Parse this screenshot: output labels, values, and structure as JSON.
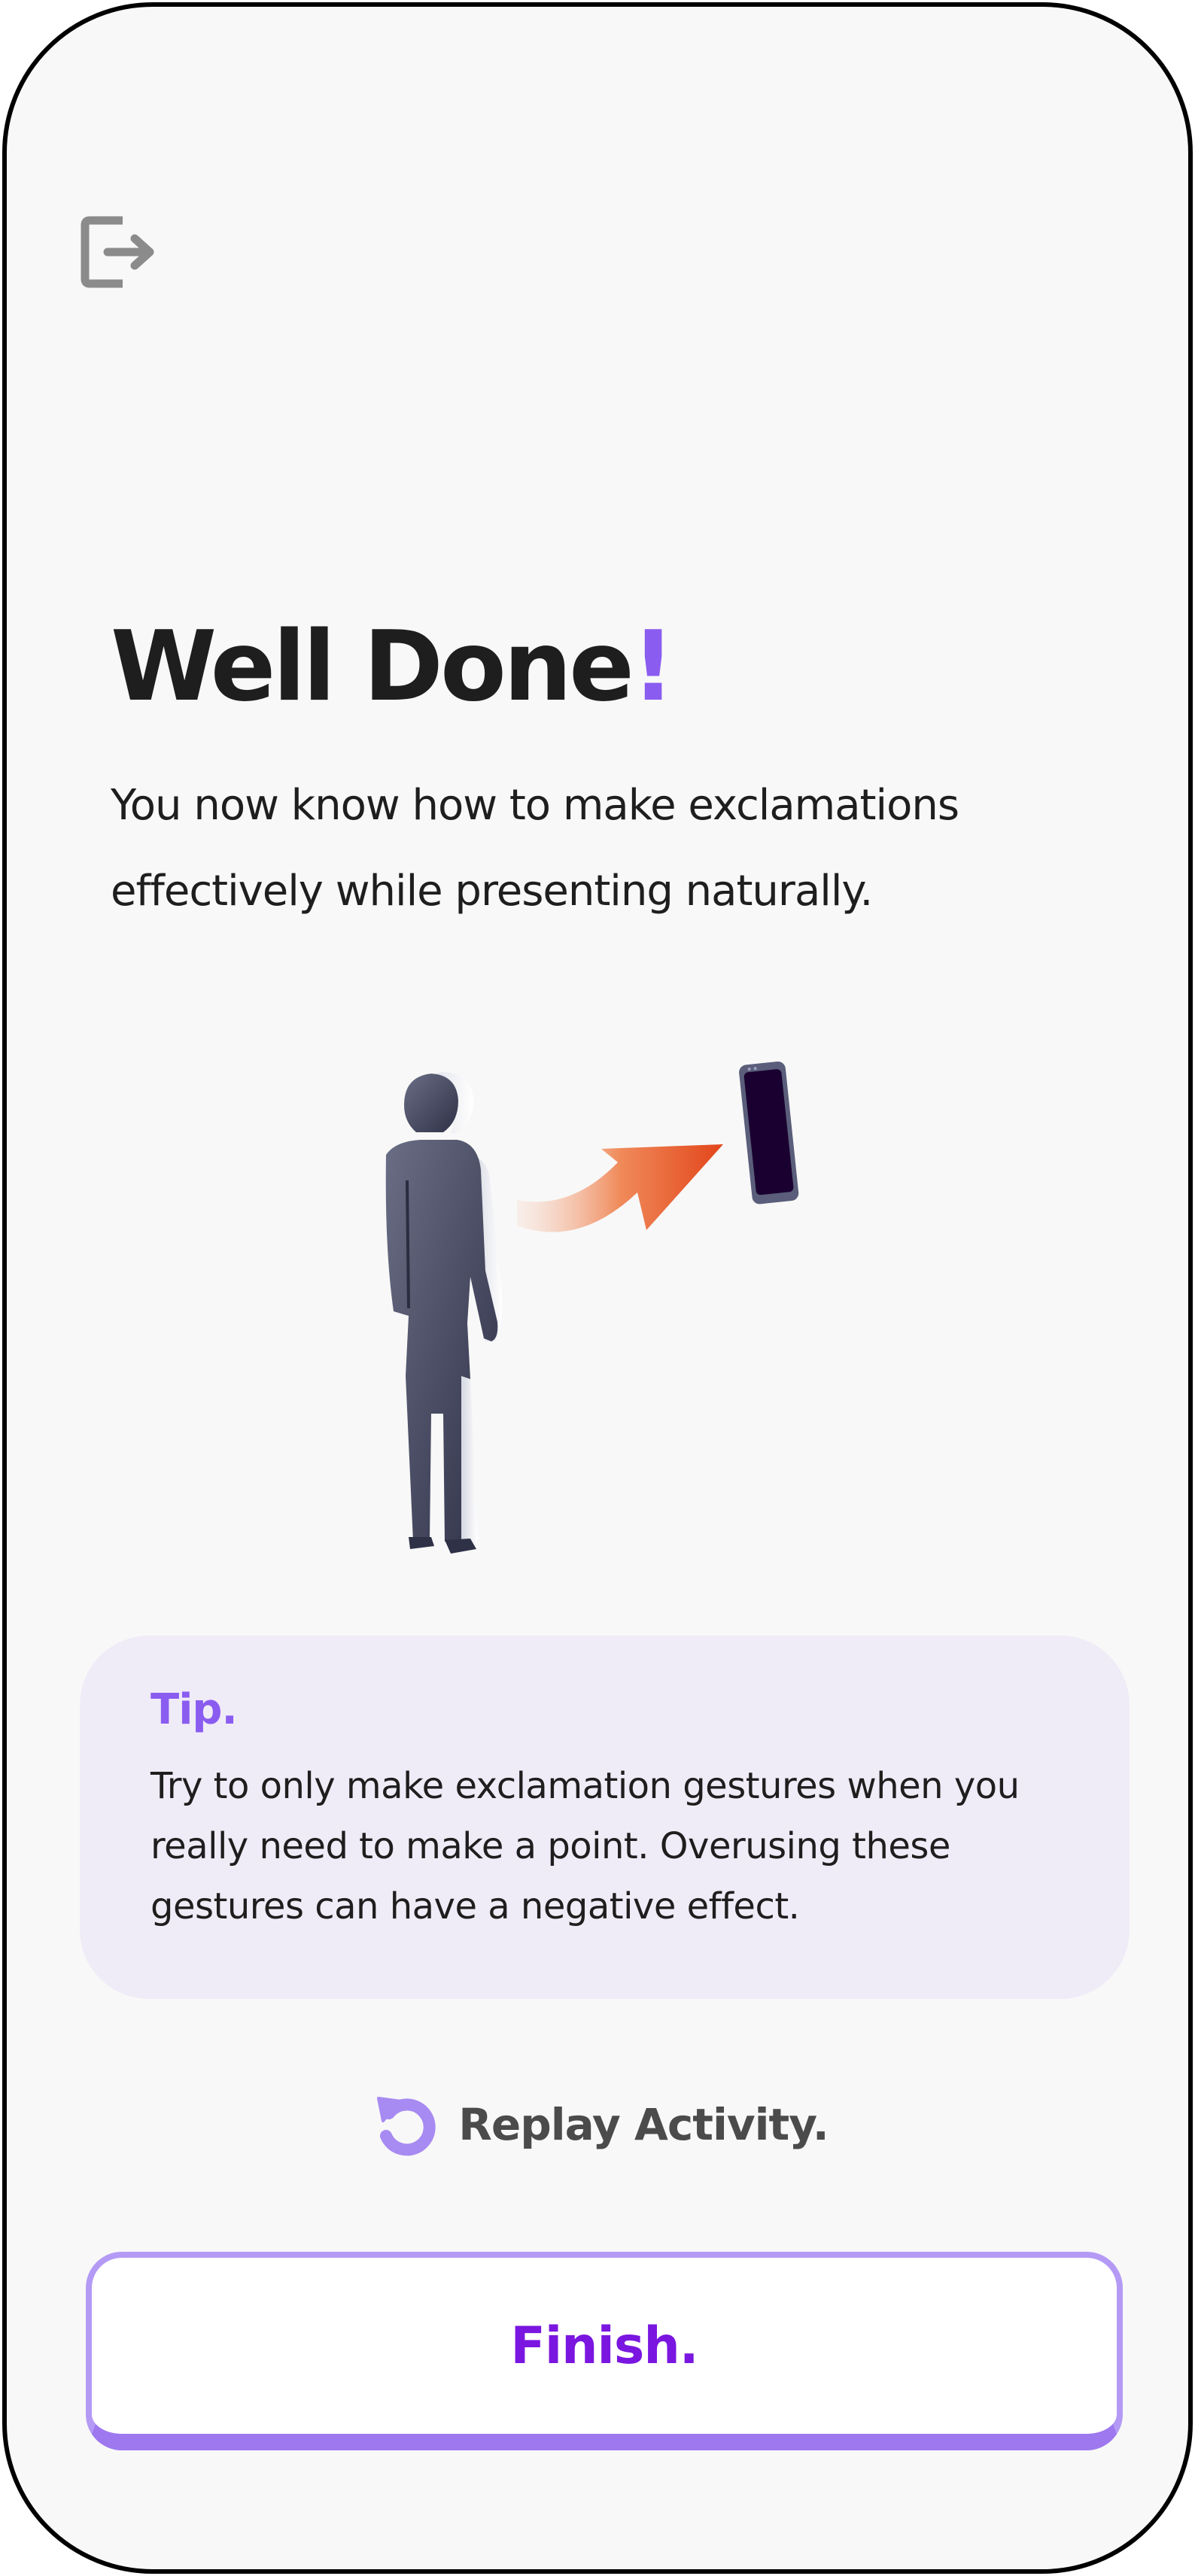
{
  "header": {
    "exit_icon": "exit-icon"
  },
  "main": {
    "title_text": "Well Done",
    "title_exclamation": "!",
    "subtitle": "You now know how to make exclamations effectively while presenting naturally."
  },
  "illustration": {
    "icon": "person-gesturing-at-phone"
  },
  "tip": {
    "label": "Tip.",
    "text": "Try to only make exclamation gestures when you really need to make a point. Overusing these gestures can have a negative effect."
  },
  "actions": {
    "replay_icon": "replay-icon",
    "replay_label": "Replay Activity.",
    "finish_label": "Finish."
  },
  "colors": {
    "accent": "#8a5cf0",
    "finish_text": "#7a16e0",
    "button_border": "#b49af5",
    "tip_background": "#f0ecf7",
    "arrow": "#e85a24",
    "phone_screen": "#1a0030"
  }
}
